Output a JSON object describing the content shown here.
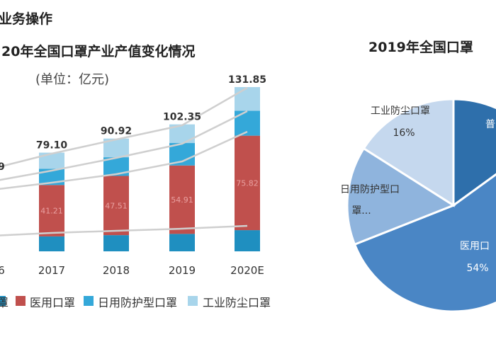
{
  "header_snippet": "业务操作",
  "chart_data": [
    {
      "type": "bar",
      "title": "20年全国口罩产业产值变化情况",
      "subtitle": "(单位：亿元)",
      "categories": [
        "6",
        "2017",
        "2018",
        "2019",
        "2020E"
      ],
      "totals": [
        "9",
        "79.10",
        "90.92",
        "102.35",
        "131.85"
      ],
      "series": [
        {
          "name": "普通口罩",
          "values": [
            null,
            12,
            13,
            14,
            17
          ],
          "labels": [
            "",
            "",
            "",
            "",
            ""
          ]
        },
        {
          "name": "医用口罩",
          "values": [
            null,
            41.21,
            47.51,
            54.91,
            75.82
          ],
          "labels": [
            "",
            "41.21",
            "47.51",
            "54.91",
            "75.82"
          ]
        },
        {
          "name": "日用防护型口罩",
          "values": [
            null,
            13,
            15,
            18,
            20
          ],
          "labels": [
            "",
            "",
            "",
            "",
            ""
          ]
        },
        {
          "name": "工业防尘口罩",
          "values": [
            null,
            13,
            15,
            15,
            19
          ],
          "labels": [
            "",
            "",
            "",
            "",
            ""
          ]
        }
      ],
      "colors": [
        "#1f8fc0",
        "#c0504d",
        "#34a8d9",
        "#a8d5eb"
      ],
      "legend": [
        "罩",
        "医用口罩",
        "日用防护型口罩",
        "工业防尘口罩"
      ],
      "legend_position": "bottom",
      "grid": false
    },
    {
      "type": "pie",
      "title": "2019年全国口罩",
      "slices": [
        {
          "label": "普",
          "percent": 15,
          "color": "#2e6fab"
        },
        {
          "label": "医用口",
          "percent": 54,
          "pct_label": "54%",
          "color": "#4a86c5"
        },
        {
          "label": "日用防护型口罩...",
          "lines": [
            "日用防护型口",
            "罩..."
          ],
          "percent": 15,
          "color": "#8fb4dd"
        },
        {
          "label": "工业防尘口罩",
          "percent": 16,
          "pct_label": "16%",
          "color": "#c5d8ee"
        }
      ]
    }
  ]
}
